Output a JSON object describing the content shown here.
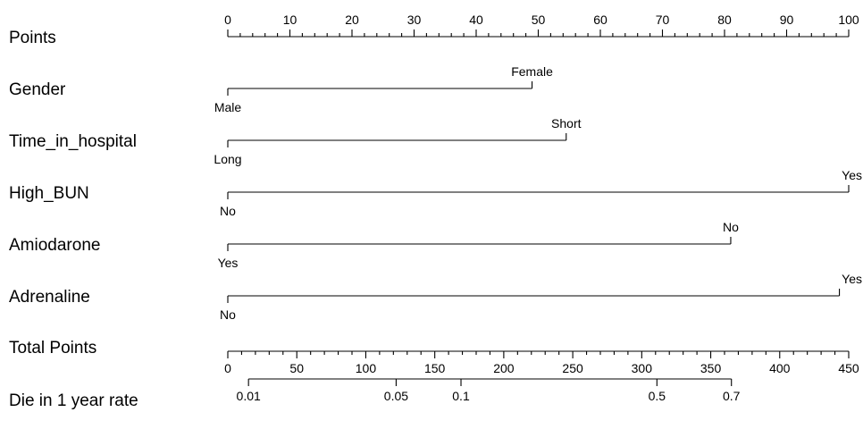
{
  "chart_data": {
    "type": "nomogram",
    "rows": [
      {
        "label": "Points",
        "kind": "axis",
        "min": 0,
        "max": 100,
        "ticks": [
          0,
          10,
          20,
          30,
          40,
          50,
          60,
          70,
          80,
          90,
          100
        ],
        "minor_step": 2,
        "labels_above": true
      },
      {
        "label": "Gender",
        "kind": "variable",
        "levels": [
          {
            "name": "Male",
            "points": 0
          },
          {
            "name": "Female",
            "points": 49
          }
        ]
      },
      {
        "label": "Time_in_hospital",
        "kind": "variable",
        "levels": [
          {
            "name": "Long",
            "points": 0
          },
          {
            "name": "Short",
            "points": 54.5
          }
        ]
      },
      {
        "label": "High_BUN",
        "kind": "variable",
        "levels": [
          {
            "name": "No",
            "points": 0
          },
          {
            "name": "Yes",
            "points": 100
          }
        ]
      },
      {
        "label": "Amiodarone",
        "kind": "variable",
        "levels": [
          {
            "name": "Yes",
            "points": 0
          },
          {
            "name": "No",
            "points": 81
          }
        ]
      },
      {
        "label": "Adrenaline",
        "kind": "variable",
        "levels": [
          {
            "name": "No",
            "points": 0
          },
          {
            "name": "Yes",
            "points": 98.5
          }
        ]
      },
      {
        "label": "Total Points",
        "kind": "axis",
        "min": 0,
        "max": 450,
        "ticks": [
          0,
          50,
          100,
          150,
          200,
          250,
          300,
          350,
          400,
          450
        ],
        "minor_step": 10,
        "labels_above": false
      },
      {
        "label": "Die in 1 year rate",
        "kind": "probability",
        "ticks": [
          {
            "label": "0.01",
            "total_points": 15
          },
          {
            "label": "0.05",
            "total_points": 122
          },
          {
            "label": "0.1",
            "total_points": 169
          },
          {
            "label": "0.5",
            "total_points": 311
          },
          {
            "label": "0.7",
            "total_points": 365
          }
        ]
      }
    ]
  }
}
